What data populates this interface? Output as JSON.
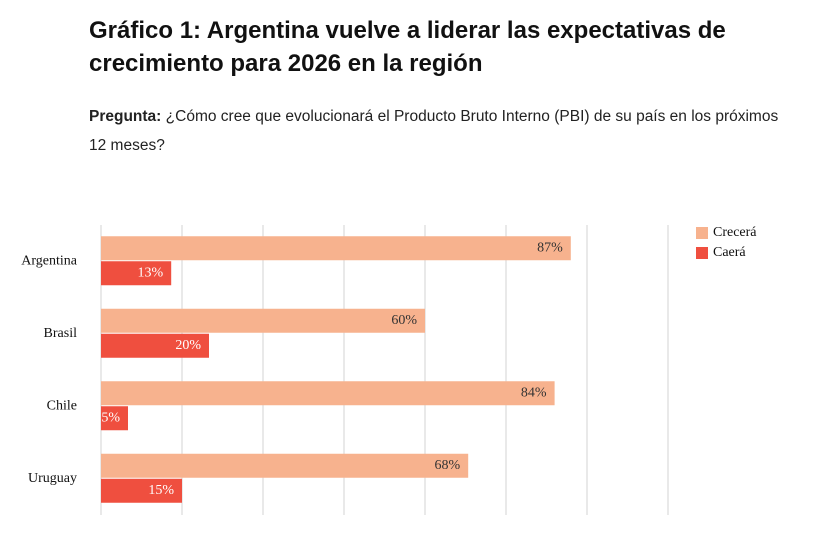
{
  "chart_data": {
    "type": "hbar",
    "title": "Gráfico 1: Argentina vuelve a liderar las expectativas de crecimiento para 2026 en la región",
    "question_label": "Pregunta:",
    "question": "¿Cómo cree que evolucionará el Producto Bruto Interno (PBI) de su país en los próximos 12 meses?",
    "categories": [
      "Argentina",
      "Brasil",
      "Chile",
      "Uruguay"
    ],
    "series": [
      {
        "name": "Crecerá",
        "color": "#f7b28e",
        "values": [
          87,
          60,
          84,
          68
        ],
        "value_labels": [
          "87%",
          "60%",
          "84%",
          "68%"
        ]
      },
      {
        "name": "Caerá",
        "color": "#ef4f3f",
        "values": [
          13,
          20,
          5,
          15
        ],
        "value_labels": [
          "13%",
          "20%",
          "5%",
          "15%"
        ]
      }
    ],
    "xlim": [
      0,
      105
    ],
    "xticks": [
      0,
      15,
      30,
      45,
      60,
      75,
      90,
      105
    ],
    "grid": true,
    "legend": "top-right"
  }
}
